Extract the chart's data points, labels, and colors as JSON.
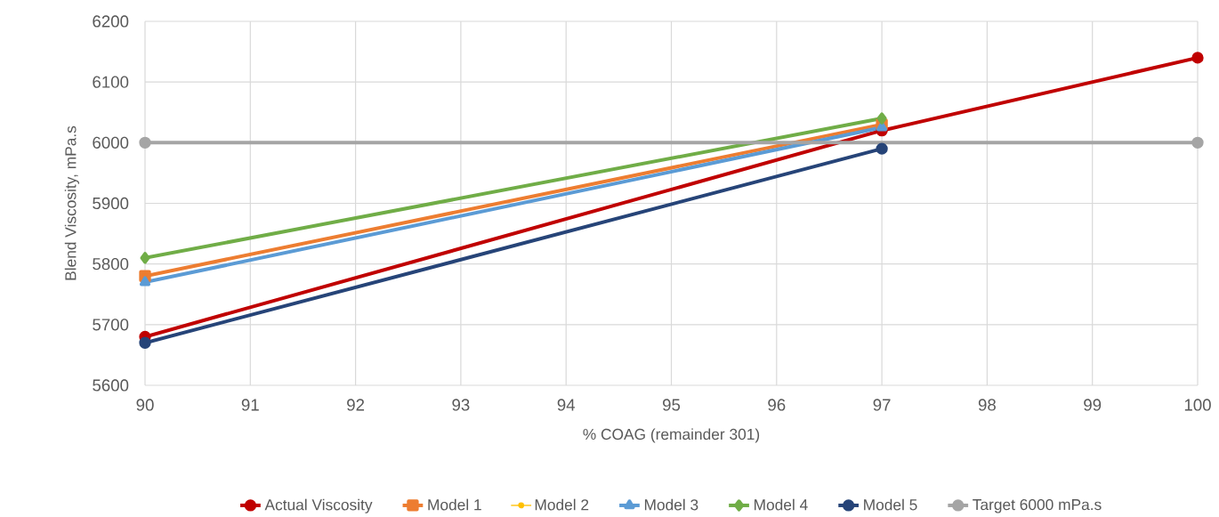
{
  "chart_data": {
    "type": "line",
    "xlabel": "% COAG (remainder 301)",
    "ylabel": "Blend Viscosity, mPa.s",
    "xlim": [
      90,
      100
    ],
    "xticks": [
      90,
      91,
      92,
      93,
      94,
      95,
      96,
      97,
      98,
      99,
      100
    ],
    "ylim": [
      5600,
      6200
    ],
    "yticks": [
      5600,
      5700,
      5800,
      5900,
      6000,
      6100,
      6200
    ],
    "grid": true,
    "legend": "bottom",
    "line_style": "solid",
    "series": [
      {
        "name": "Actual Viscosity",
        "color": "#c00000",
        "marker": "circle",
        "x": [
          90,
          97,
          100
        ],
        "values": [
          5680,
          6020,
          6140
        ]
      },
      {
        "name": "Model 1",
        "color": "#ed7d31",
        "marker": "square",
        "x": [
          90,
          97
        ],
        "values": [
          5780,
          6030
        ]
      },
      {
        "name": "Model 2",
        "color": "#ffc000",
        "marker": "circle",
        "values": [
          null,
          null
        ]
      },
      {
        "name": "Model 3",
        "color": "#5b9bd5",
        "marker": "triangle",
        "x": [
          90,
          97
        ],
        "values": [
          5770,
          6025
        ]
      },
      {
        "name": "Model 4",
        "color": "#70ad47",
        "marker": "diamond",
        "x": [
          90,
          97
        ],
        "values": [
          5810,
          6040
        ]
      },
      {
        "name": "Model 5",
        "color": "#264478",
        "marker": "circle",
        "x": [
          90,
          97
        ],
        "values": [
          5670,
          5990
        ]
      },
      {
        "name": "Target 6000 mPa.s",
        "color": "#a5a5a5",
        "marker": "circle",
        "x": [
          90,
          100
        ],
        "values": [
          6000,
          6000
        ]
      }
    ]
  }
}
